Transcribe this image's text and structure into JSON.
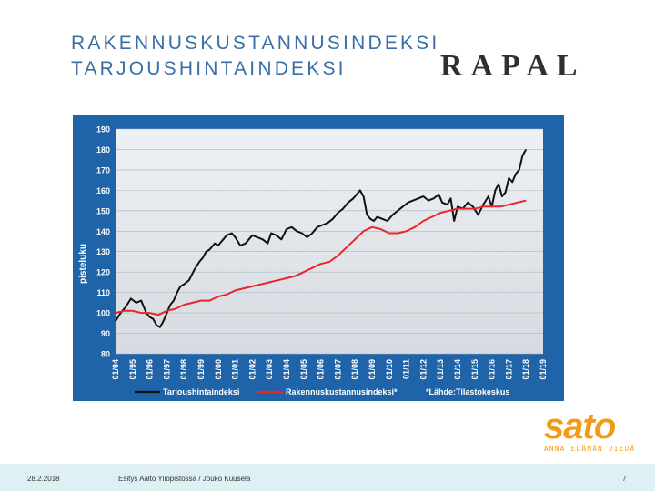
{
  "slide": {
    "title_line1": "RAKENNUSKUSTANNUSINDEKSI",
    "title_line2": "TARJOUSHINTAINDEKSI",
    "logo_rapal": "RAPAL",
    "logo_sato": "sato",
    "logo_sato_tagline": "ANNA ELÄMÄN VIEDÄ",
    "footer_date": "28.2.2018",
    "footer_text": "Esitys Aalto Yliopistossa / Jouko Kuusela",
    "page_number": "7"
  },
  "colors": {
    "title": "#3a6fa6",
    "chart_frame": "#1f64a8",
    "plot_bg_top": "#eef1f4",
    "plot_bg_bottom": "#d6dbe1",
    "series_tarjous": "#111111",
    "series_rakennus": "#e8262b",
    "sato_orange": "#f59a14",
    "footer_bg": "#dff0f4"
  },
  "chart_data": {
    "type": "line",
    "ylabel": "pisteluku",
    "xlabel": "",
    "ylim": [
      80,
      190
    ],
    "yticks": [
      80,
      90,
      100,
      110,
      120,
      130,
      140,
      150,
      160,
      170,
      180,
      190
    ],
    "x_tick_labels": [
      "01/94",
      "01/95",
      "01/96",
      "01/97",
      "01/98",
      "01/99",
      "01/00",
      "01/01",
      "01/02",
      "01/03",
      "01/04",
      "01/05",
      "01/06",
      "01/07",
      "01/08",
      "01/09",
      "01/10",
      "01/11",
      "01/12",
      "01/13",
      "01/14",
      "01/15",
      "01/16",
      "01/17",
      "01/18",
      "01/19"
    ],
    "xlim": [
      1994.0,
      2019.0
    ],
    "grid": true,
    "legend_position": "bottom",
    "source_note": "*Lähde:Tilastokeskus",
    "series": [
      {
        "name": "Tarjoushintaindeksi",
        "color": "#111111",
        "x": [
          1994.0,
          1994.3,
          1994.6,
          1994.9,
          1995.2,
          1995.5,
          1995.8,
          1996.0,
          1996.2,
          1996.4,
          1996.6,
          1996.8,
          1997.0,
          1997.2,
          1997.4,
          1997.6,
          1997.8,
          1998.0,
          1998.3,
          1998.6,
          1998.9,
          1999.1,
          1999.3,
          1999.5,
          1999.8,
          2000.0,
          2000.3,
          2000.5,
          2000.8,
          2001.0,
          2001.3,
          2001.6,
          2001.8,
          2002.0,
          2002.3,
          2002.6,
          2002.9,
          2003.1,
          2003.4,
          2003.7,
          2004.0,
          2004.3,
          2004.6,
          2004.9,
          2005.2,
          2005.5,
          2005.8,
          2006.1,
          2006.4,
          2006.7,
          2007.0,
          2007.3,
          2007.6,
          2007.9,
          2008.1,
          2008.3,
          2008.5,
          2008.7,
          2008.9,
          2009.1,
          2009.3,
          2009.6,
          2009.9,
          2010.2,
          2010.5,
          2010.8,
          2011.1,
          2011.4,
          2011.7,
          2012.0,
          2012.3,
          2012.6,
          2012.9,
          2013.1,
          2013.4,
          2013.6,
          2013.8,
          2014.0,
          2014.3,
          2014.6,
          2014.9,
          2015.2,
          2015.5,
          2015.8,
          2016.0,
          2016.2,
          2016.4,
          2016.6,
          2016.8,
          2017.0,
          2017.2,
          2017.4,
          2017.6,
          2017.8,
          2018.0
        ],
        "y": [
          96,
          100,
          103,
          107,
          105,
          106,
          100,
          98,
          97,
          94,
          93,
          96,
          100,
          104,
          106,
          110,
          113,
          114,
          116,
          121,
          125,
          127,
          130,
          131,
          134,
          133,
          136,
          138,
          139,
          137,
          133,
          134,
          136,
          138,
          137,
          136,
          134,
          139,
          138,
          136,
          141,
          142,
          140,
          139,
          137,
          139,
          142,
          143,
          144,
          146,
          149,
          151,
          154,
          156,
          158,
          160,
          157,
          148,
          146,
          145,
          147,
          146,
          145,
          148,
          150,
          152,
          154,
          155,
          156,
          157,
          155,
          156,
          158,
          154,
          153,
          156,
          145,
          152,
          151,
          154,
          152,
          148,
          153,
          157,
          152,
          160,
          163,
          157,
          159,
          166,
          164,
          168,
          170,
          177,
          180
        ]
      },
      {
        "name": "Rakennuskustannusindeksi*",
        "color": "#e8262b",
        "x": [
          1994.0,
          1994.5,
          1995.0,
          1995.5,
          1996.0,
          1996.5,
          1997.0,
          1997.5,
          1998.0,
          1998.5,
          1999.0,
          1999.5,
          2000.0,
          2000.5,
          2001.0,
          2001.5,
          2002.0,
          2002.5,
          2003.0,
          2003.5,
          2004.0,
          2004.5,
          2005.0,
          2005.5,
          2006.0,
          2006.5,
          2007.0,
          2007.5,
          2008.0,
          2008.5,
          2009.0,
          2009.5,
          2010.0,
          2010.5,
          2011.0,
          2011.5,
          2012.0,
          2012.5,
          2013.0,
          2013.5,
          2014.0,
          2014.5,
          2015.0,
          2015.5,
          2016.0,
          2016.5,
          2017.0,
          2017.5,
          2018.0
        ],
        "y": [
          100,
          101,
          101,
          100,
          100,
          99,
          101,
          102,
          104,
          105,
          106,
          106,
          108,
          109,
          111,
          112,
          113,
          114,
          115,
          116,
          117,
          118,
          120,
          122,
          124,
          125,
          128,
          132,
          136,
          140,
          142,
          141,
          139,
          139,
          140,
          142,
          145,
          147,
          149,
          150,
          151,
          151,
          151,
          152,
          152,
          152,
          153,
          154,
          155
        ]
      }
    ]
  }
}
